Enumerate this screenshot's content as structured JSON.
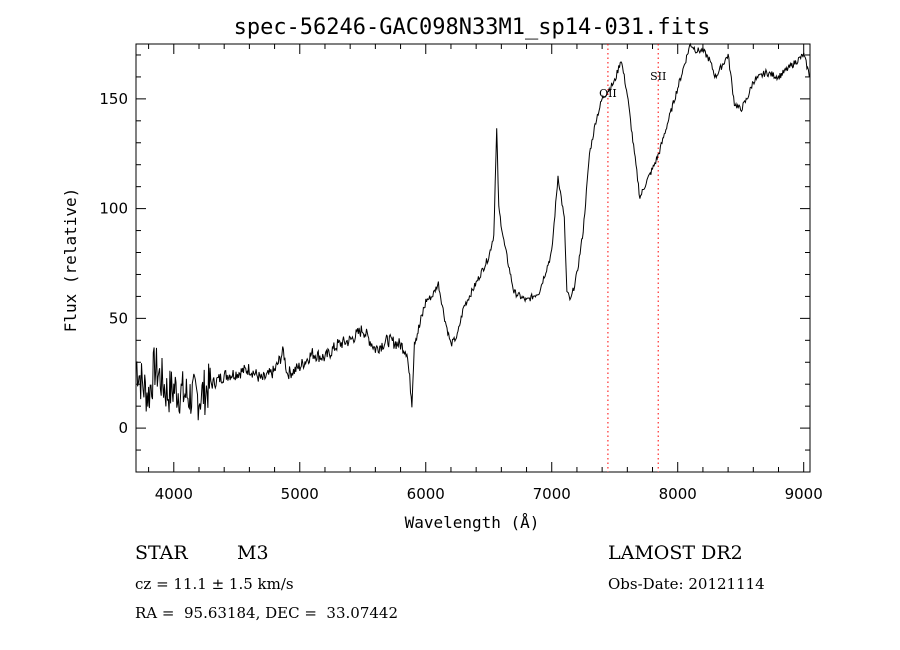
{
  "chart_data": {
    "type": "line",
    "title": "spec-56246-GAC098N33M1_sp14-031.fits",
    "xlabel": "Wavelength (Å)",
    "ylabel": "Flux (relative)",
    "xlim": [
      3700,
      9050
    ],
    "ylim": [
      -20,
      175
    ],
    "xticks": [
      "4000",
      "5000",
      "6000",
      "7000",
      "8000",
      "9000"
    ],
    "yticks": [
      "0",
      "50",
      "100",
      "150"
    ],
    "grid": false,
    "line_color": "#000000",
    "marker_color": "#ff0000",
    "series": [
      {
        "x": [
          3700,
          3750,
          3800,
          3850,
          3900,
          3950,
          4000,
          4100,
          4200,
          4300,
          4400,
          4500,
          4600,
          4700,
          4800,
          4870,
          4900,
          4950,
          5000,
          5100,
          5200,
          5300,
          5400,
          5500,
          5600,
          5700,
          5800,
          5850,
          5890,
          5910,
          5950,
          6000,
          6050,
          6100,
          6150,
          6200,
          6250,
          6300,
          6400,
          6500,
          6540,
          6563,
          6580,
          6620,
          6700,
          6800,
          6900,
          7000,
          7050,
          7100,
          7120,
          7150,
          7200,
          7250,
          7300,
          7350,
          7400,
          7450,
          7500,
          7550,
          7600,
          7650,
          7700,
          7750,
          7800,
          7850,
          7900,
          8000,
          8100,
          8150,
          8200,
          8250,
          8300,
          8400,
          8450,
          8500,
          8550,
          8600,
          8700,
          8800,
          8900,
          9000,
          9050
        ],
        "y": [
          30,
          20,
          15,
          28,
          22,
          16,
          18,
          15,
          14,
          20,
          24,
          25,
          27,
          22,
          26,
          35,
          25,
          26,
          28,
          34,
          32,
          38,
          40,
          45,
          36,
          40,
          38,
          35,
          12,
          40,
          46,
          58,
          60,
          66,
          50,
          38,
          42,
          55,
          66,
          78,
          88,
          136,
          100,
          85,
          62,
          58,
          62,
          80,
          115,
          95,
          62,
          58,
          70,
          90,
          125,
          140,
          150,
          154,
          158,
          168,
          152,
          128,
          105,
          112,
          118,
          125,
          135,
          155,
          175,
          172,
          172,
          168,
          160,
          170,
          148,
          145,
          150,
          158,
          162,
          160,
          165,
          170,
          160
        ]
      }
    ],
    "markers": [
      {
        "label": "OII",
        "x": 7446
      },
      {
        "label": "SII",
        "x": 7845
      }
    ]
  },
  "info": {
    "object_class": "STAR",
    "subclass": "M3",
    "survey": "LAMOST DR2",
    "redshift": "cz = 11.1 ± 1.5 km/s",
    "obs_date": "Obs-Date: 20121114",
    "coords": "RA =  95.63184, DEC =  33.07442"
  }
}
